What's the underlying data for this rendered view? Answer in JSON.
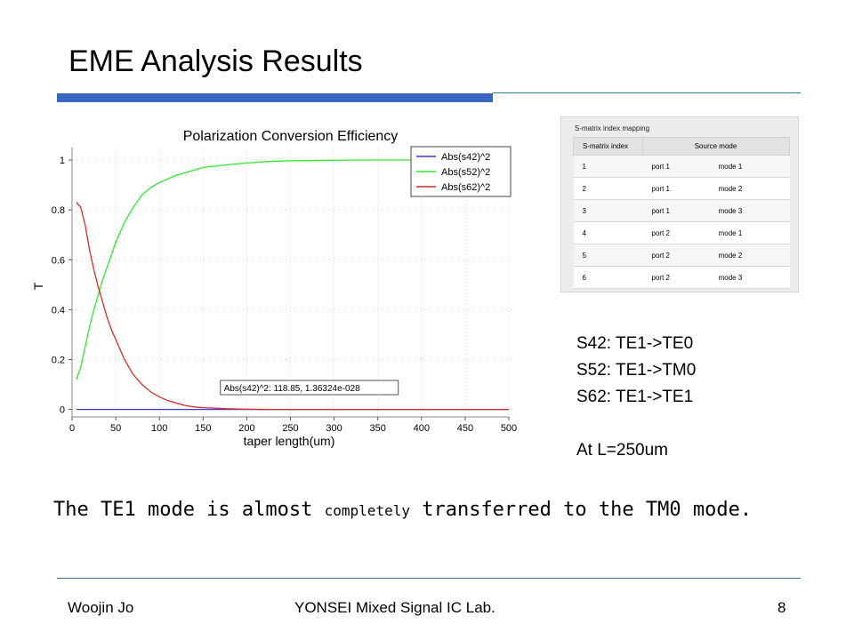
{
  "slide": {
    "title": "EME Analysis Results",
    "notes": [
      "S42: TE1->TE0",
      "S52: TE1->TM0",
      "S62: TE1->TE1",
      "At L=250um"
    ],
    "conclusion_parts": [
      "The TE1 mode is almost ",
      "completely",
      " transferred to the TM0 mode."
    ],
    "footer": {
      "author": "Woojin Jo",
      "lab": "YONSEI Mixed Signal IC Lab.",
      "page": "8"
    }
  },
  "smatrix": {
    "title": "S-matrix index mapping",
    "headers": [
      "S-matrix index",
      "Source mode"
    ],
    "rows": [
      [
        "1",
        "port 1",
        "mode 1"
      ],
      [
        "2",
        "port 1",
        "mode 2"
      ],
      [
        "3",
        "port 1",
        "mode 3"
      ],
      [
        "4",
        "port 2",
        "mode 1"
      ],
      [
        "5",
        "port 2",
        "mode 2"
      ],
      [
        "6",
        "port 2",
        "mode 3"
      ]
    ]
  },
  "colors": {
    "s42": "#3b3bd8",
    "s52": "#2ee82e",
    "s62": "#d62a2a"
  },
  "chart_data": {
    "type": "line",
    "title": "Polarization Conversion Efficiency",
    "xlabel": "taper length(um)",
    "ylabel": "T",
    "xlim": [
      0,
      500
    ],
    "ylim": [
      -0.03,
      1.05
    ],
    "xticks": [
      "0",
      "50",
      "100",
      "150",
      "200",
      "250",
      "300",
      "350",
      "400",
      "450",
      "500"
    ],
    "yticks": [
      "0",
      "0.2",
      "0.4",
      "0.6",
      "0.8",
      "1"
    ],
    "legend_position": "top-right",
    "annotation": "Abs(s42)^2: 118.85, 1.36324e-028",
    "x": [
      5,
      10,
      15,
      20,
      25,
      30,
      35,
      40,
      45,
      50,
      60,
      70,
      80,
      90,
      100,
      110,
      120,
      130,
      140,
      150,
      175,
      200,
      225,
      250,
      300,
      350,
      400,
      450,
      500
    ],
    "series": [
      {
        "name": "Abs(s42)^2",
        "color_key": "s42",
        "values": [
          0,
          0,
          0,
          0,
          0,
          0,
          0,
          0,
          0,
          0,
          0,
          0,
          0,
          0,
          0,
          0,
          0,
          0,
          0,
          0,
          0,
          0,
          0,
          0,
          0,
          0,
          0,
          0,
          0
        ]
      },
      {
        "name": "Abs(s52)^2",
        "color_key": "s52",
        "values": [
          0.12,
          0.17,
          0.25,
          0.33,
          0.4,
          0.46,
          0.52,
          0.57,
          0.62,
          0.67,
          0.75,
          0.81,
          0.86,
          0.89,
          0.91,
          0.925,
          0.94,
          0.95,
          0.96,
          0.97,
          0.98,
          0.988,
          0.994,
          0.997,
          0.999,
          1.0,
          1.0,
          1.0,
          1.0
        ]
      },
      {
        "name": "Abs(s62)^2",
        "color_key": "s62",
        "values": [
          0.83,
          0.81,
          0.74,
          0.64,
          0.56,
          0.49,
          0.43,
          0.37,
          0.32,
          0.28,
          0.2,
          0.14,
          0.1,
          0.07,
          0.05,
          0.035,
          0.025,
          0.015,
          0.01,
          0.007,
          0.003,
          0.001,
          0,
          0,
          0,
          0,
          0,
          0,
          0
        ]
      }
    ]
  }
}
